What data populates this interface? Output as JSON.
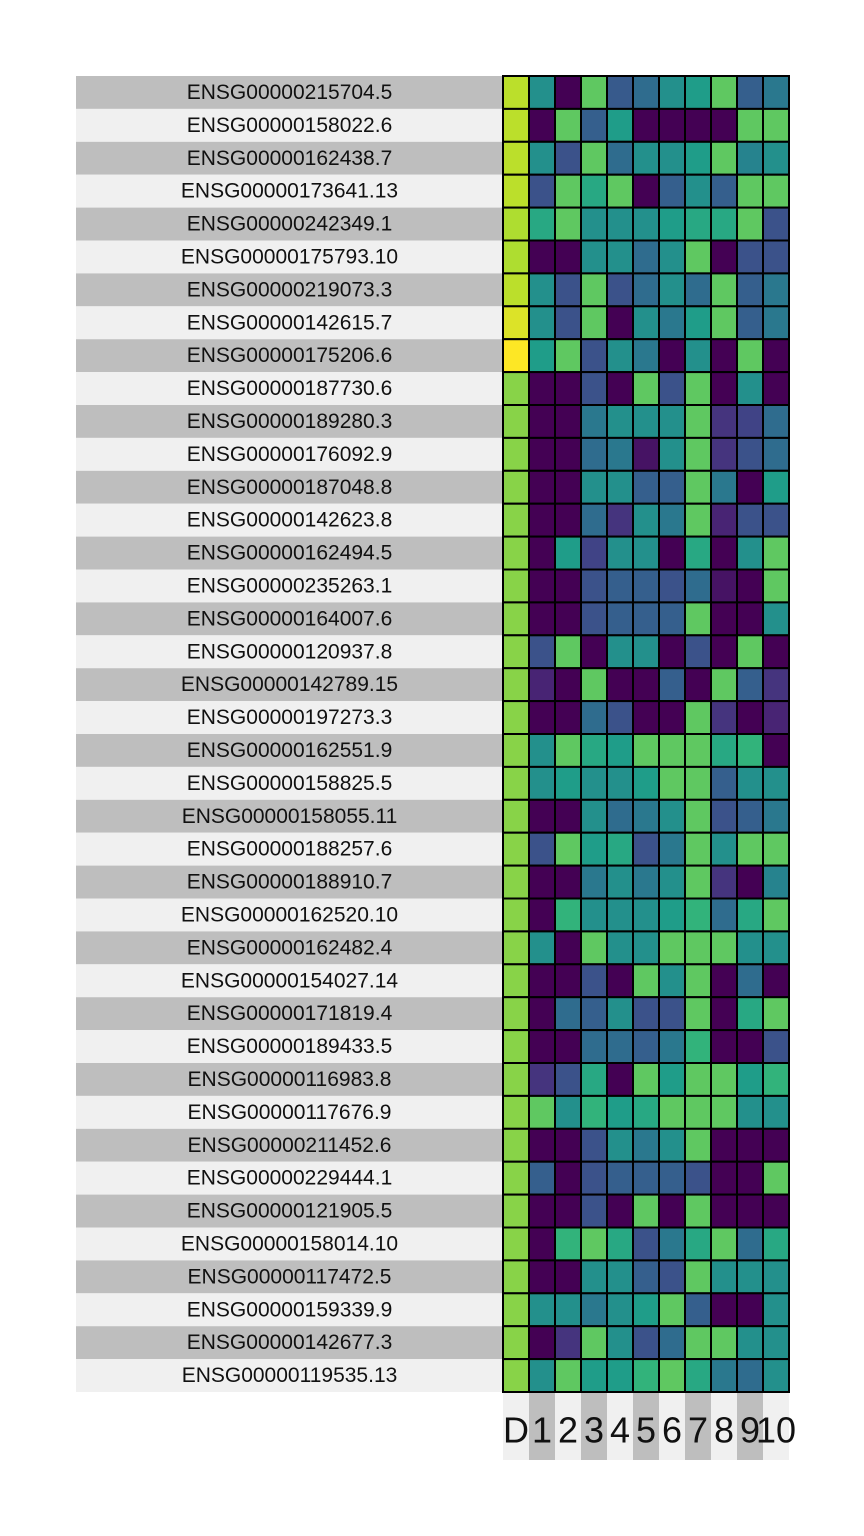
{
  "chart_data": {
    "type": "heatmap",
    "colormap": "viridis",
    "row_band_colors": [
      "#bebebe",
      "#f0f0f0"
    ],
    "col_band_colors": [
      "#f0f0f0",
      "#bebebe"
    ],
    "columns": [
      "D",
      "1",
      "2",
      "3",
      "4",
      "5",
      "6",
      "7",
      "8",
      "9",
      "10"
    ],
    "rows": [
      "ENSG00000215704.5",
      "ENSG00000158022.6",
      "ENSG00000162438.7",
      "ENSG00000173641.13",
      "ENSG00000242349.1",
      "ENSG00000175793.10",
      "ENSG00000219073.3",
      "ENSG00000142615.7",
      "ENSG00000175206.6",
      "ENSG00000187730.6",
      "ENSG00000189280.3",
      "ENSG00000176092.9",
      "ENSG00000187048.8",
      "ENSG00000142623.8",
      "ENSG00000162494.5",
      "ENSG00000235263.1",
      "ENSG00000164007.6",
      "ENSG00000120937.8",
      "ENSG00000142789.15",
      "ENSG00000197273.3",
      "ENSG00000162551.9",
      "ENSG00000158825.5",
      "ENSG00000158055.11",
      "ENSG00000188257.6",
      "ENSG00000188910.7",
      "ENSG00000162520.10",
      "ENSG00000162482.4",
      "ENSG00000154027.14",
      "ENSG00000171819.4",
      "ENSG00000189433.5",
      "ENSG00000116983.8",
      "ENSG00000117676.9",
      "ENSG00000211452.6",
      "ENSG00000229444.1",
      "ENSG00000121905.5",
      "ENSG00000158014.10",
      "ENSG00000117472.5",
      "ENSG00000159339.9",
      "ENSG00000142677.3",
      "ENSG00000119535.13"
    ],
    "values": [
      [
        0.9,
        0.5,
        0.0,
        0.75,
        0.28,
        0.35,
        0.5,
        0.55,
        0.75,
        0.3,
        0.4
      ],
      [
        0.9,
        0.0,
        0.75,
        0.3,
        0.55,
        0.0,
        0.0,
        0.0,
        0.0,
        0.75,
        0.75
      ],
      [
        0.9,
        0.5,
        0.25,
        0.75,
        0.35,
        0.5,
        0.5,
        0.55,
        0.75,
        0.45,
        0.5
      ],
      [
        0.9,
        0.25,
        0.75,
        0.6,
        0.75,
        0.0,
        0.3,
        0.5,
        0.3,
        0.75,
        0.75
      ],
      [
        0.88,
        0.6,
        0.75,
        0.5,
        0.5,
        0.5,
        0.55,
        0.6,
        0.6,
        0.75,
        0.25
      ],
      [
        0.88,
        0.0,
        0.0,
        0.5,
        0.5,
        0.35,
        0.5,
        0.75,
        0.0,
        0.25,
        0.25
      ],
      [
        0.9,
        0.5,
        0.25,
        0.75,
        0.25,
        0.35,
        0.5,
        0.35,
        0.75,
        0.3,
        0.4
      ],
      [
        0.95,
        0.5,
        0.25,
        0.75,
        0.0,
        0.5,
        0.4,
        0.55,
        0.75,
        0.3,
        0.4
      ],
      [
        1.0,
        0.55,
        0.75,
        0.25,
        0.5,
        0.4,
        0.0,
        0.5,
        0.0,
        0.75,
        0.0
      ],
      [
        0.82,
        0.0,
        0.0,
        0.25,
        0.0,
        0.75,
        0.25,
        0.75,
        0.0,
        0.5,
        0.0
      ],
      [
        0.82,
        0.0,
        0.0,
        0.4,
        0.5,
        0.5,
        0.5,
        0.75,
        0.15,
        0.2,
        0.35
      ],
      [
        0.82,
        0.0,
        0.0,
        0.35,
        0.4,
        0.05,
        0.5,
        0.75,
        0.15,
        0.25,
        0.35
      ],
      [
        0.82,
        0.0,
        0.0,
        0.5,
        0.5,
        0.3,
        0.3,
        0.75,
        0.4,
        0.0,
        0.55
      ],
      [
        0.82,
        0.0,
        0.0,
        0.35,
        0.15,
        0.5,
        0.4,
        0.75,
        0.1,
        0.25,
        0.25
      ],
      [
        0.82,
        0.0,
        0.55,
        0.2,
        0.5,
        0.5,
        0.0,
        0.6,
        0.0,
        0.5,
        0.75
      ],
      [
        0.82,
        0.0,
        0.0,
        0.25,
        0.3,
        0.3,
        0.25,
        0.35,
        0.05,
        0.0,
        0.75
      ],
      [
        0.82,
        0.0,
        0.0,
        0.25,
        0.3,
        0.3,
        0.3,
        0.75,
        0.0,
        0.0,
        0.5
      ],
      [
        0.82,
        0.25,
        0.75,
        0.0,
        0.5,
        0.5,
        0.0,
        0.25,
        0.0,
        0.75,
        0.0
      ],
      [
        0.82,
        0.1,
        0.0,
        0.75,
        0.0,
        0.0,
        0.3,
        0.0,
        0.75,
        0.3,
        0.15
      ],
      [
        0.82,
        0.0,
        0.0,
        0.35,
        0.25,
        0.0,
        0.0,
        0.75,
        0.15,
        0.0,
        0.1
      ],
      [
        0.82,
        0.5,
        0.75,
        0.6,
        0.55,
        0.75,
        0.75,
        0.75,
        0.6,
        0.65,
        0.0
      ],
      [
        0.82,
        0.5,
        0.55,
        0.5,
        0.5,
        0.55,
        0.75,
        0.75,
        0.3,
        0.5,
        0.5
      ],
      [
        0.82,
        0.0,
        0.0,
        0.5,
        0.35,
        0.4,
        0.5,
        0.75,
        0.25,
        0.3,
        0.4
      ],
      [
        0.82,
        0.25,
        0.75,
        0.55,
        0.6,
        0.25,
        0.4,
        0.75,
        0.5,
        0.75,
        0.75
      ],
      [
        0.82,
        0.0,
        0.0,
        0.4,
        0.5,
        0.4,
        0.5,
        0.75,
        0.15,
        0.0,
        0.45
      ],
      [
        0.82,
        0.0,
        0.65,
        0.5,
        0.5,
        0.5,
        0.55,
        0.65,
        0.35,
        0.6,
        0.75
      ],
      [
        0.82,
        0.5,
        0.0,
        0.75,
        0.5,
        0.5,
        0.75,
        0.75,
        0.75,
        0.5,
        0.5
      ],
      [
        0.82,
        0.0,
        0.0,
        0.25,
        0.0,
        0.75,
        0.5,
        0.75,
        0.0,
        0.35,
        0.0
      ],
      [
        0.82,
        0.0,
        0.35,
        0.3,
        0.5,
        0.25,
        0.25,
        0.75,
        0.0,
        0.6,
        0.75
      ],
      [
        0.82,
        0.0,
        0.0,
        0.35,
        0.35,
        0.3,
        0.4,
        0.65,
        0.0,
        0.0,
        0.25
      ],
      [
        0.82,
        0.15,
        0.25,
        0.6,
        0.0,
        0.75,
        0.55,
        0.75,
        0.75,
        0.55,
        0.65
      ],
      [
        0.82,
        0.75,
        0.5,
        0.65,
        0.55,
        0.6,
        0.75,
        0.75,
        0.75,
        0.5,
        0.5
      ],
      [
        0.82,
        0.0,
        0.0,
        0.25,
        0.5,
        0.4,
        0.5,
        0.75,
        0.0,
        0.0,
        0.0
      ],
      [
        0.82,
        0.3,
        0.0,
        0.25,
        0.3,
        0.3,
        0.3,
        0.25,
        0.0,
        0.0,
        0.75
      ],
      [
        0.82,
        0.0,
        0.0,
        0.25,
        0.0,
        0.75,
        0.0,
        0.75,
        0.0,
        0.0,
        0.0
      ],
      [
        0.82,
        0.0,
        0.65,
        0.75,
        0.6,
        0.25,
        0.4,
        0.6,
        0.75,
        0.35,
        0.6
      ],
      [
        0.82,
        0.0,
        0.0,
        0.5,
        0.5,
        0.3,
        0.25,
        0.75,
        0.5,
        0.5,
        0.5
      ],
      [
        0.82,
        0.5,
        0.5,
        0.4,
        0.5,
        0.55,
        0.75,
        0.3,
        0.0,
        0.0,
        0.5
      ],
      [
        0.82,
        0.0,
        0.15,
        0.75,
        0.5,
        0.25,
        0.35,
        0.75,
        0.75,
        0.5,
        0.5
      ],
      [
        0.82,
        0.5,
        0.75,
        0.55,
        0.55,
        0.65,
        0.75,
        0.6,
        0.4,
        0.35,
        0.5
      ]
    ],
    "xlabel": "",
    "ylabel": ""
  }
}
